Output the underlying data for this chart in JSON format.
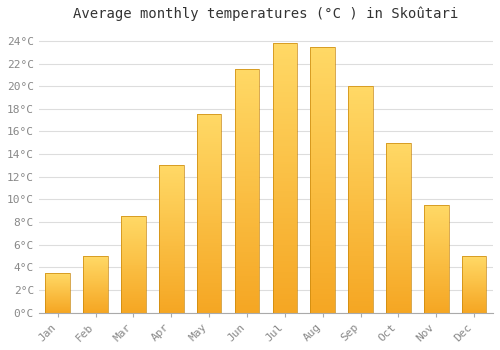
{
  "title": "Average monthly temperatures (°C ) in Skoûtari",
  "months": [
    "Jan",
    "Feb",
    "Mar",
    "Apr",
    "May",
    "Jun",
    "Jul",
    "Aug",
    "Sep",
    "Oct",
    "Nov",
    "Dec"
  ],
  "values": [
    3.5,
    5.0,
    8.5,
    13.0,
    17.5,
    21.5,
    23.8,
    23.5,
    20.0,
    15.0,
    9.5,
    5.0
  ],
  "bar_color_bottom": "#F5A623",
  "bar_color_top": "#FFD966",
  "bar_edge_color": "#C8860A",
  "ylim": [
    0,
    25
  ],
  "yticks": [
    0,
    2,
    4,
    6,
    8,
    10,
    12,
    14,
    16,
    18,
    20,
    22,
    24
  ],
  "background_color": "#ffffff",
  "grid_color": "#dddddd",
  "title_fontsize": 10,
  "tick_fontsize": 8,
  "font_family": "monospace"
}
